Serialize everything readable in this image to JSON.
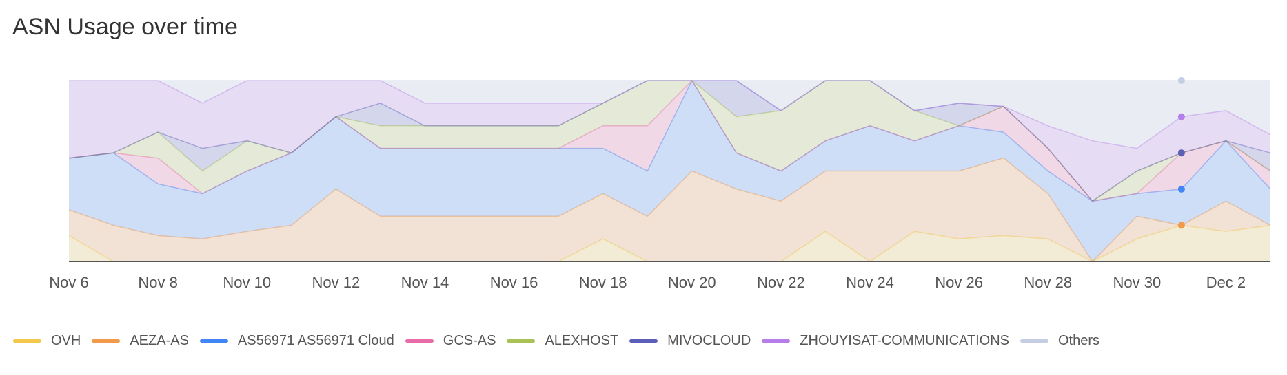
{
  "title": "ASN Usage over time",
  "chart_data": {
    "type": "area",
    "stacking": "percent",
    "title": "ASN Usage over time",
    "xlabel": "",
    "ylabel": "",
    "ylim": [
      0,
      100
    ],
    "grid": false,
    "legend_position": "bottom",
    "x": [
      "Nov 6",
      "Nov 7",
      "Nov 8",
      "Nov 9",
      "Nov 10",
      "Nov 11",
      "Nov 12",
      "Nov 13",
      "Nov 14",
      "Nov 15",
      "Nov 16",
      "Nov 17",
      "Nov 18",
      "Nov 19",
      "Nov 20",
      "Nov 21",
      "Nov 22",
      "Nov 23",
      "Nov 24",
      "Nov 25",
      "Nov 26",
      "Nov 27",
      "Nov 28",
      "Nov 29",
      "Nov 30",
      "Dec 1",
      "Dec 2",
      "Dec 3"
    ],
    "x_tick_labels": [
      "Nov 6",
      "Nov 8",
      "Nov 10",
      "Nov 12",
      "Nov 14",
      "Nov 16",
      "Nov 18",
      "Nov 20",
      "Nov 22",
      "Nov 24",
      "Nov 26",
      "Nov 28",
      "Nov 30",
      "Dec 2"
    ],
    "series": [
      {
        "name": "OVH",
        "color": "#f2c94c",
        "values": [
          1,
          0,
          0,
          0,
          0,
          0,
          0,
          0,
          0,
          0,
          0,
          0,
          1,
          0,
          0,
          0,
          0,
          1,
          0,
          1,
          1,
          1,
          1,
          0,
          1,
          1,
          1,
          2
        ]
      },
      {
        "name": "AEZA-AS",
        "color": "#f2994a",
        "values": [
          1,
          1,
          1,
          1,
          1,
          1,
          2,
          2,
          2,
          2,
          2,
          2,
          2,
          1,
          1,
          2,
          2,
          2,
          2,
          2,
          3,
          3,
          2,
          0,
          1,
          0,
          1,
          0
        ]
      },
      {
        "name": "AS56971 AS56971 Cloud",
        "color": "#4285f4",
        "values": [
          2,
          2,
          2,
          2,
          2,
          2,
          2,
          3,
          3,
          3,
          3,
          3,
          2,
          1,
          1,
          1,
          1,
          1,
          1,
          1,
          2,
          1,
          1,
          1,
          1,
          1,
          2,
          2
        ]
      },
      {
        "name": "GCS-AS",
        "color": "#e86aa6",
        "values": [
          0,
          0,
          1,
          0,
          0,
          0,
          0,
          0,
          0,
          0,
          0,
          0,
          1,
          1,
          0,
          0,
          0,
          0,
          0,
          0,
          0,
          1,
          1,
          0,
          0,
          1,
          0,
          1
        ]
      },
      {
        "name": "ALEXHOST",
        "color": "#a8c256",
        "values": [
          0,
          0,
          1,
          1,
          1,
          0,
          0,
          1,
          1,
          1,
          1,
          1,
          1,
          1,
          0,
          1,
          2,
          2,
          1,
          1,
          0,
          0,
          0,
          0,
          1,
          0,
          0,
          0
        ]
      },
      {
        "name": "MIVOCLOUD",
        "color": "#5c5fb8",
        "values": [
          0,
          0,
          0,
          1,
          0,
          0,
          0,
          1,
          0,
          0,
          0,
          0,
          0,
          0,
          0,
          1,
          0,
          0,
          0,
          0,
          1,
          0,
          0,
          0,
          0,
          0,
          0,
          1
        ]
      },
      {
        "name": "ZHOUYISAT-COMMUNICATIONS",
        "color": "#b57ee8",
        "values": [
          3,
          2,
          2,
          2,
          2,
          2,
          1,
          1,
          1,
          1,
          1,
          1,
          0,
          0,
          0,
          0,
          0,
          0,
          0,
          0,
          0,
          0,
          1,
          1,
          1,
          1,
          1,
          1
        ]
      },
      {
        "name": "Others",
        "color": "#c5cde3",
        "values": [
          0,
          0,
          0,
          1,
          0,
          0,
          0,
          0,
          1,
          1,
          1,
          1,
          1,
          0,
          0,
          0,
          1,
          0,
          0,
          1,
          1,
          1,
          2,
          1,
          3,
          1,
          1,
          3
        ]
      }
    ],
    "hover": {
      "x": "Dec 1",
      "index": 25
    }
  },
  "legend": {
    "items": [
      {
        "label": "OVH",
        "color": "#f2c94c"
      },
      {
        "label": "AEZA-AS",
        "color": "#f2994a"
      },
      {
        "label": "AS56971 AS56971 Cloud",
        "color": "#4285f4"
      },
      {
        "label": "GCS-AS",
        "color": "#e86aa6"
      },
      {
        "label": "ALEXHOST",
        "color": "#a8c256"
      },
      {
        "label": "MIVOCLOUD",
        "color": "#5c5fb8"
      },
      {
        "label": "ZHOUYISAT-COMMUNICATIONS",
        "color": "#b57ee8"
      },
      {
        "label": "Others",
        "color": "#c5cde3"
      }
    ]
  }
}
